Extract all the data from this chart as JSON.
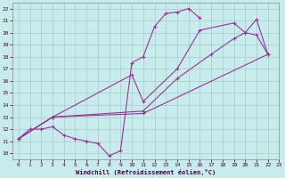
{
  "xlabel": "Windchill (Refroidissement éolien,°C)",
  "bg_color": "#c8ecec",
  "grid_color": "#a8cccc",
  "line_color": "#993399",
  "xlim": [
    -0.5,
    23
  ],
  "ylim": [
    9.5,
    22.5
  ],
  "xticks": [
    0,
    1,
    2,
    3,
    4,
    5,
    6,
    7,
    8,
    9,
    10,
    11,
    12,
    13,
    14,
    15,
    16,
    17,
    18,
    19,
    20,
    21,
    22,
    23
  ],
  "yticks": [
    10,
    11,
    12,
    13,
    14,
    15,
    16,
    17,
    18,
    19,
    20,
    21,
    22
  ],
  "line1_x": [
    0,
    1,
    2,
    3,
    4,
    5,
    6,
    7,
    8,
    9,
    10,
    11,
    12,
    13,
    14,
    15,
    16
  ],
  "line1_y": [
    11.2,
    12.0,
    12.0,
    12.2,
    11.5,
    11.2,
    11.0,
    10.8,
    9.8,
    10.2,
    17.5,
    18.0,
    20.5,
    21.6,
    21.7,
    22.0,
    21.2
  ],
  "line2_x": [
    0,
    3,
    11,
    22
  ],
  "line2_y": [
    11.2,
    13.0,
    13.3,
    18.2
  ],
  "line3_x": [
    0,
    3,
    11,
    14,
    17,
    19,
    20,
    21,
    22
  ],
  "line3_y": [
    11.2,
    13.0,
    13.5,
    16.2,
    18.2,
    19.5,
    20.0,
    19.8,
    18.2
  ],
  "line4_x": [
    0,
    3,
    10,
    11,
    14,
    16,
    19,
    20,
    21,
    22
  ],
  "line4_y": [
    11.2,
    13.0,
    16.5,
    14.3,
    17.0,
    20.2,
    20.8,
    20.0,
    21.1,
    18.2
  ],
  "figsize": [
    3.2,
    2.0
  ],
  "dpi": 100
}
